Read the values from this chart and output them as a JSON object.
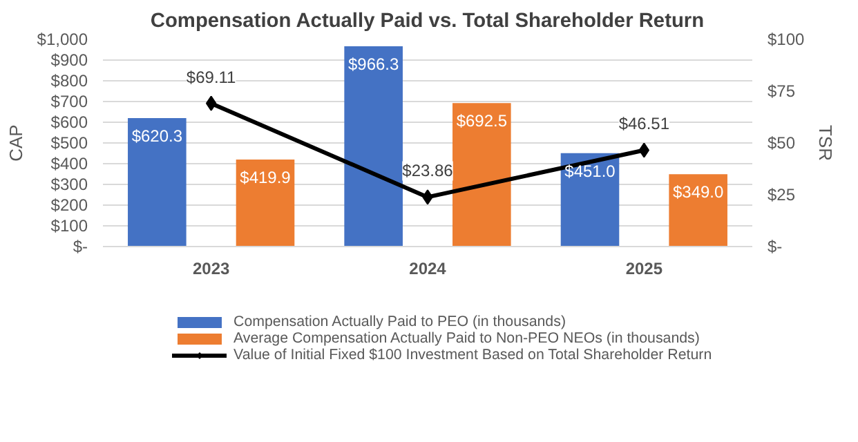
{
  "chart_data": {
    "type": "bar",
    "title": "Compensation Actually Paid vs. Total Shareholder Return",
    "ylabel": "CAP",
    "y2label": "TSR",
    "categories": [
      "2023",
      "2024",
      "2025"
    ],
    "series": [
      {
        "name": "Compensation Actually Paid to PEO (in thousands)",
        "color": "#4472c4",
        "values": [
          620.3,
          966.3,
          451.0
        ],
        "value_labels": [
          "$620.3",
          "$966.3",
          "$451.0"
        ]
      },
      {
        "name": "Average Compensation Actually Paid to Non-PEO NEOs (in thousands)",
        "color": "#ed7d31",
        "values": [
          419.9,
          692.5,
          349.0
        ],
        "value_labels": [
          "$419.9",
          "$692.5",
          "$349.0"
        ]
      },
      {
        "name": "Value of Initial Fixed $100 Investment Based on Total Shareholder Return",
        "type": "line",
        "axis": "y2",
        "color": "#000000",
        "marker": "diamond",
        "line_style": "solid",
        "values": [
          69.11,
          23.86,
          46.51
        ],
        "value_labels": [
          "$69.11",
          "$23.86",
          "$46.51"
        ]
      }
    ],
    "ylim": [
      0,
      1000
    ],
    "yticks": [
      {
        "value": 0,
        "label": "$-"
      },
      {
        "value": 100,
        "label": "$100"
      },
      {
        "value": 200,
        "label": "$200"
      },
      {
        "value": 300,
        "label": "$300"
      },
      {
        "value": 400,
        "label": "$400"
      },
      {
        "value": 500,
        "label": "$500"
      },
      {
        "value": 600,
        "label": "$600"
      },
      {
        "value": 700,
        "label": "$700"
      },
      {
        "value": 800,
        "label": "$800"
      },
      {
        "value": 900,
        "label": "$900"
      },
      {
        "value": 1000,
        "label": "$1,000"
      }
    ],
    "y2lim": [
      0,
      100
    ],
    "y2ticks": [
      {
        "value": 0,
        "label": "$-"
      },
      {
        "value": 25,
        "label": "$25"
      },
      {
        "value": 50,
        "label": "$50"
      },
      {
        "value": 75,
        "label": "$75"
      },
      {
        "value": 100,
        "label": "$100"
      }
    ],
    "grid": "y",
    "legend": "bottom"
  }
}
